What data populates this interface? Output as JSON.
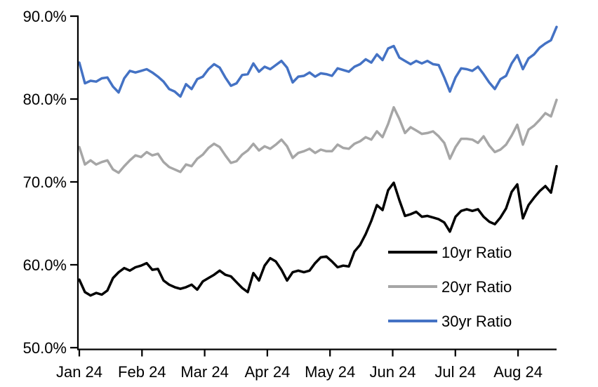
{
  "figure": {
    "background_color": "#ffffff",
    "axis_color": "#000000"
  },
  "legend": {
    "items": [
      {
        "label": "10yr Ratio",
        "color": "#000000"
      },
      {
        "label": "20yr Ratio",
        "color": "#A6A6A6"
      },
      {
        "label": "30yr Ratio",
        "color": "#4472C4"
      }
    ]
  },
  "chart_data": {
    "type": "line",
    "title": "",
    "xlabel": "",
    "ylabel": "",
    "grid": false,
    "legend_position": "inside-lower-right",
    "ylim": [
      50,
      90
    ],
    "y_ticks": [
      {
        "value": 50,
        "label": "50.0%"
      },
      {
        "value": 60,
        "label": "60.0%"
      },
      {
        "value": 70,
        "label": "70.0%"
      },
      {
        "value": 80,
        "label": "80.0%"
      },
      {
        "value": 90,
        "label": "90.0%"
      }
    ],
    "x_ticks": [
      {
        "month_index": 0,
        "label": "Jan 24"
      },
      {
        "month_index": 1,
        "label": "Feb 24"
      },
      {
        "month_index": 2,
        "label": "Mar 24"
      },
      {
        "month_index": 3,
        "label": "Apr 24"
      },
      {
        "month_index": 4,
        "label": "May 24"
      },
      {
        "month_index": 5,
        "label": "Jun 24"
      },
      {
        "month_index": 6,
        "label": "Jul 24"
      },
      {
        "month_index": 7,
        "label": "Aug 24"
      },
      {
        "month_index": 7.615,
        "label": ""
      }
    ],
    "x_axis_span_months": 7.615,
    "sampling_note": "values in percent, sampled ~every 2 trading days from Jan 2024 through early Sep 2024",
    "series": [
      {
        "name": "10yr Ratio",
        "color": "#000000",
        "values": [
          58.2,
          56.7,
          56.3,
          56.6,
          56.4,
          56.9,
          58.4,
          59.1,
          59.6,
          59.3,
          59.7,
          59.9,
          60.2,
          59.4,
          59.5,
          58.1,
          57.6,
          57.3,
          57.1,
          57.3,
          57.6,
          57.0,
          58.0,
          58.4,
          58.8,
          59.3,
          58.8,
          58.6,
          57.9,
          57.2,
          56.7,
          59.0,
          58.1,
          59.9,
          60.8,
          60.4,
          59.4,
          58.1,
          59.1,
          59.3,
          59.1,
          59.3,
          60.2,
          60.9,
          61.0,
          60.4,
          59.7,
          59.9,
          59.8,
          61.6,
          62.4,
          63.7,
          65.3,
          67.2,
          66.6,
          69.0,
          69.9,
          67.8,
          65.9,
          66.1,
          66.4,
          65.8,
          65.9,
          65.7,
          65.5,
          65.1,
          64.0,
          65.8,
          66.5,
          66.7,
          66.5,
          66.7,
          65.8,
          65.2,
          64.9,
          65.7,
          66.8,
          68.8,
          69.7,
          65.6,
          67.2,
          68.1,
          68.9,
          69.5,
          68.7,
          71.9
        ]
      },
      {
        "name": "20yr Ratio",
        "color": "#A6A6A6",
        "values": [
          74.2,
          72.1,
          72.6,
          72.1,
          72.4,
          72.6,
          71.5,
          71.1,
          71.9,
          72.6,
          73.2,
          73.0,
          73.6,
          73.2,
          73.4,
          72.4,
          71.8,
          71.5,
          71.2,
          72.1,
          71.9,
          72.8,
          73.3,
          74.1,
          74.6,
          74.2,
          73.2,
          72.3,
          72.5,
          73.3,
          73.8,
          74.6,
          73.8,
          74.3,
          74.0,
          74.5,
          75.1,
          74.3,
          72.9,
          73.5,
          73.7,
          74.0,
          73.5,
          73.9,
          73.7,
          73.7,
          74.5,
          74.1,
          74.0,
          74.6,
          74.9,
          75.4,
          75.1,
          76.1,
          75.4,
          77.0,
          79.0,
          77.6,
          75.9,
          76.6,
          76.2,
          75.8,
          75.9,
          76.1,
          75.5,
          74.7,
          72.8,
          74.2,
          75.2,
          75.2,
          75.1,
          74.7,
          75.5,
          74.4,
          73.6,
          73.9,
          74.5,
          75.6,
          76.9,
          74.5,
          76.3,
          76.8,
          77.5,
          78.3,
          77.9,
          79.9
        ]
      },
      {
        "name": "30yr Ratio",
        "color": "#4472C4",
        "values": [
          84.4,
          81.9,
          82.2,
          82.1,
          82.5,
          82.6,
          81.5,
          80.8,
          82.5,
          83.4,
          83.2,
          83.4,
          83.6,
          83.2,
          82.7,
          82.1,
          81.2,
          80.9,
          80.3,
          81.8,
          81.2,
          82.4,
          82.7,
          83.6,
          84.2,
          83.8,
          82.6,
          81.6,
          81.9,
          82.9,
          83.0,
          84.3,
          83.3,
          83.9,
          83.6,
          84.1,
          84.6,
          83.8,
          82.0,
          82.7,
          82.8,
          83.2,
          82.7,
          83.1,
          83.0,
          82.8,
          83.7,
          83.5,
          83.3,
          83.9,
          84.2,
          84.8,
          84.4,
          85.4,
          84.7,
          86.1,
          86.4,
          85.0,
          84.6,
          84.2,
          84.6,
          84.3,
          84.6,
          84.2,
          84.1,
          82.6,
          80.9,
          82.6,
          83.7,
          83.6,
          83.4,
          83.9,
          83.0,
          82.0,
          81.2,
          82.4,
          82.8,
          84.3,
          85.3,
          83.6,
          84.9,
          85.4,
          86.2,
          86.7,
          87.1,
          88.7
        ]
      }
    ]
  }
}
